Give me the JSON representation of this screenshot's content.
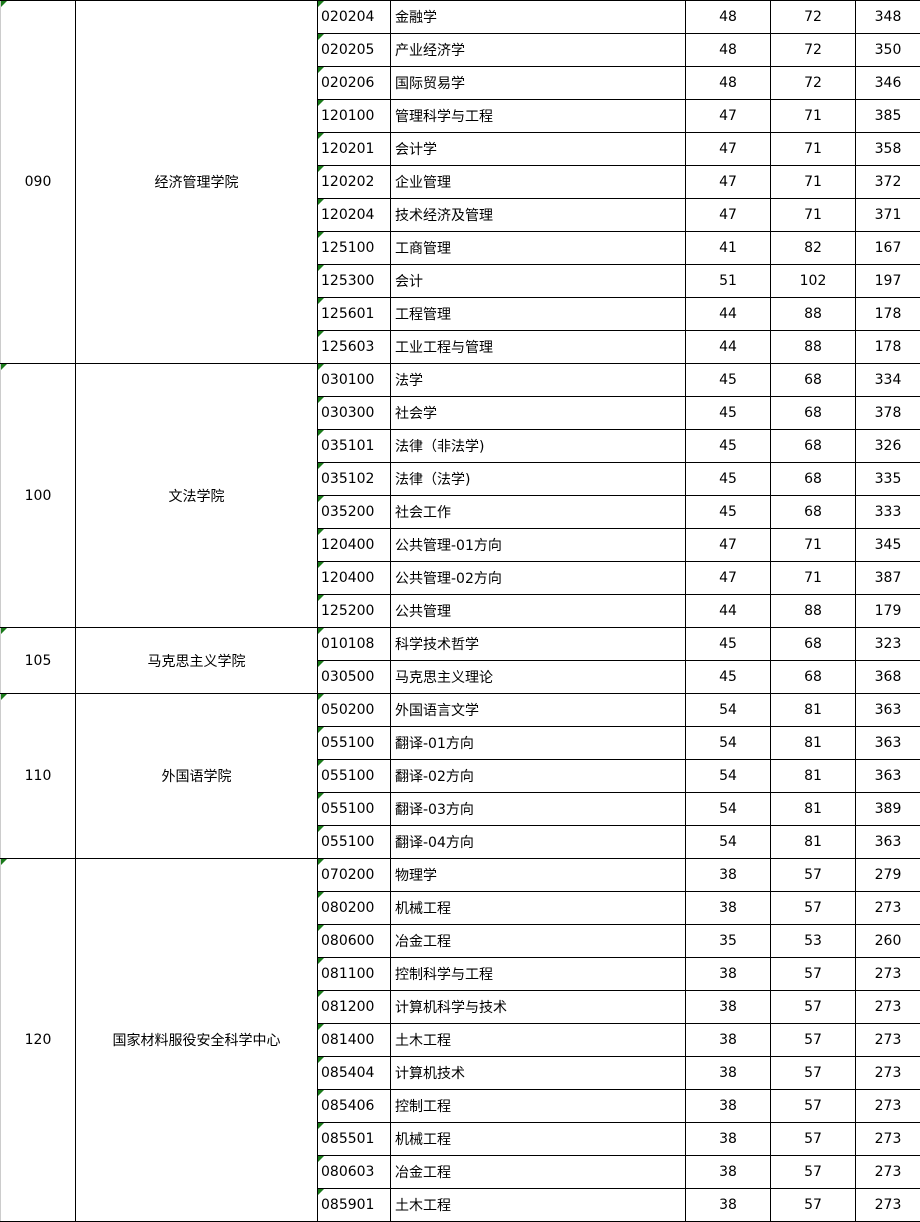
{
  "groups": [
    {
      "code": "090",
      "name": "经济管理学院",
      "rows": [
        [
          "020204",
          "金融学",
          "48",
          "72",
          "348"
        ],
        [
          "020205",
          "产业经济学",
          "48",
          "72",
          "350"
        ],
        [
          "020206",
          "国际贸易学",
          "48",
          "72",
          "346"
        ],
        [
          "120100",
          "管理科学与工程",
          "47",
          "71",
          "385"
        ],
        [
          "120201",
          "会计学",
          "47",
          "71",
          "358"
        ],
        [
          "120202",
          "企业管理",
          "47",
          "71",
          "372"
        ],
        [
          "120204",
          "技术经济及管理",
          "47",
          "71",
          "371"
        ],
        [
          "125100",
          "工商管理",
          "41",
          "82",
          "167"
        ],
        [
          "125300",
          "会计",
          "51",
          "102",
          "197"
        ],
        [
          "125601",
          "工程管理",
          "44",
          "88",
          "178"
        ],
        [
          "125603",
          "工业工程与管理",
          "44",
          "88",
          "178"
        ]
      ]
    },
    {
      "code": "100",
      "name": "文法学院",
      "rows": [
        [
          "030100",
          "法学",
          "45",
          "68",
          "334"
        ],
        [
          "030300",
          "社会学",
          "45",
          "68",
          "378"
        ],
        [
          "035101",
          "法律（非法学)",
          "45",
          "68",
          "326"
        ],
        [
          "035102",
          "法律（法学)",
          "45",
          "68",
          "335"
        ],
        [
          "035200",
          "社会工作",
          "45",
          "68",
          "333"
        ],
        [
          "120400",
          "公共管理-01方向",
          "47",
          "71",
          "345"
        ],
        [
          "120400",
          "公共管理-02方向",
          "47",
          "71",
          "387"
        ],
        [
          "125200",
          "公共管理",
          "44",
          "88",
          "179"
        ]
      ]
    },
    {
      "code": "105",
      "name": "马克思主义学院",
      "rows": [
        [
          "010108",
          "科学技术哲学",
          "45",
          "68",
          "323"
        ],
        [
          "030500",
          "马克思主义理论",
          "45",
          "68",
          "368"
        ]
      ]
    },
    {
      "code": "110",
      "name": "外国语学院",
      "rows": [
        [
          "050200",
          "外国语言文学",
          "54",
          "81",
          "363"
        ],
        [
          "055100",
          "翻译-01方向",
          "54",
          "81",
          "363"
        ],
        [
          "055100",
          "翻译-02方向",
          "54",
          "81",
          "363"
        ],
        [
          "055100",
          "翻译-03方向",
          "54",
          "81",
          "389"
        ],
        [
          "055100",
          "翻译-04方向",
          "54",
          "81",
          "363"
        ]
      ]
    },
    {
      "code": "120",
      "name": "国家材料服役安全科学中心",
      "rows": [
        [
          "070200",
          "物理学",
          "38",
          "57",
          "279"
        ],
        [
          "080200",
          "机械工程",
          "38",
          "57",
          "273"
        ],
        [
          "080600",
          "冶金工程",
          "35",
          "53",
          "260"
        ],
        [
          "081100",
          "控制科学与工程",
          "38",
          "57",
          "273"
        ],
        [
          "081200",
          "计算机科学与技术",
          "38",
          "57",
          "273"
        ],
        [
          "081400",
          "土木工程",
          "38",
          "57",
          "273"
        ],
        [
          "085404",
          "计算机技术",
          "38",
          "57",
          "273"
        ],
        [
          "085406",
          "控制工程",
          "38",
          "57",
          "273"
        ],
        [
          "085501",
          "机械工程",
          "38",
          "57",
          "273"
        ],
        [
          "080603",
          "冶金工程",
          "38",
          "57",
          "273"
        ],
        [
          "085901",
          "土木工程",
          "38",
          "57",
          "273"
        ]
      ]
    }
  ],
  "colors": {
    "border": "#000000",
    "comment_marker": "#1a7a1a"
  }
}
